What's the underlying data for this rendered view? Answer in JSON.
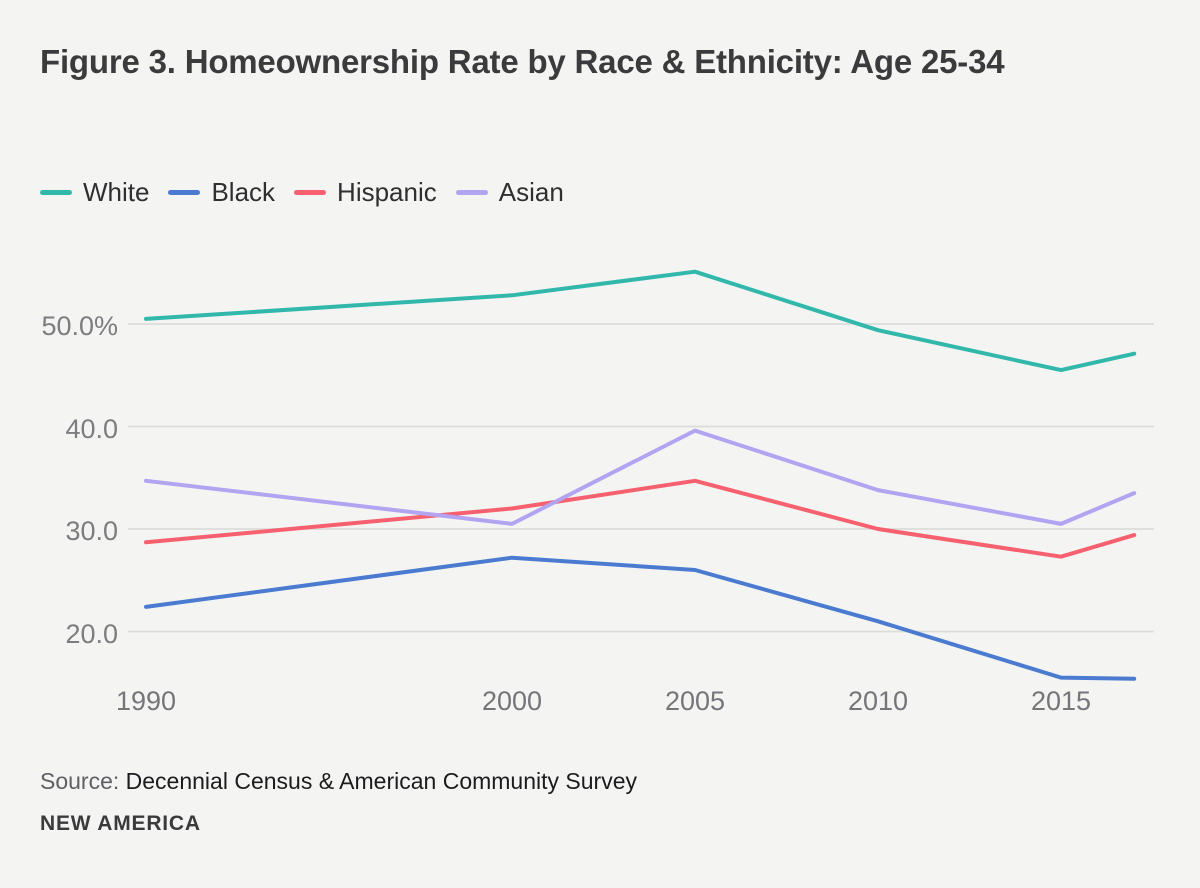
{
  "page": {
    "background": "#f4f4f3"
  },
  "header": {
    "title": "Figure 3. Homeownership Rate by Race & Ethnicity: Age 25-34"
  },
  "footer": {
    "source_label": "Source:",
    "source_text": "Decennial Census & American Community Survey",
    "brand": "NEW AMERICA"
  },
  "colors": {
    "background": "#f4f4f3",
    "title_text": "#3b3b3d",
    "legend_text": "#2f2f31",
    "axis_text": "#7d7d81",
    "gridline": "#dcdcdb",
    "white_series": "#31b8ab",
    "black_series": "#4a7bd0",
    "hispanic_series": "#f7606e",
    "asian_series": "#b2a4f0"
  },
  "chart_data": {
    "type": "line",
    "title": "Figure 3. Homeownership Rate by Race & Ethnicity: Age 25-34",
    "x": [
      1990,
      2000,
      2005,
      2010,
      2015,
      2017
    ],
    "xlim": [
      1990,
      2017
    ],
    "ylim": [
      13,
      57
    ],
    "grid": "horizontal",
    "legend_position": "top-left",
    "x_ticks": [
      {
        "year": 1990,
        "label": "1990"
      },
      {
        "year": 2000,
        "label": "2000"
      },
      {
        "year": 2005,
        "label": "2005"
      },
      {
        "year": 2010,
        "label": "2010"
      },
      {
        "year": 2015,
        "label": "2015"
      }
    ],
    "y_ticks": [
      {
        "value": 50,
        "label": "50.0%"
      },
      {
        "value": 40,
        "label": "40.0"
      },
      {
        "value": 30,
        "label": "30.0"
      },
      {
        "value": 20,
        "label": "20.0"
      }
    ],
    "series": [
      {
        "name": "White",
        "color": "#31b8ab",
        "values": [
          50.5,
          52.8,
          55.1,
          49.4,
          45.5,
          47.1
        ]
      },
      {
        "name": "Black",
        "color": "#4a7bd0",
        "values": [
          22.4,
          27.2,
          26.0,
          21.0,
          15.5,
          15.4
        ]
      },
      {
        "name": "Hispanic",
        "color": "#f7606e",
        "values": [
          28.7,
          32.0,
          34.7,
          30.0,
          27.3,
          29.4
        ]
      },
      {
        "name": "Asian",
        "color": "#b2a4f0",
        "values": [
          34.7,
          30.5,
          39.6,
          33.8,
          30.5,
          33.5
        ]
      }
    ]
  }
}
